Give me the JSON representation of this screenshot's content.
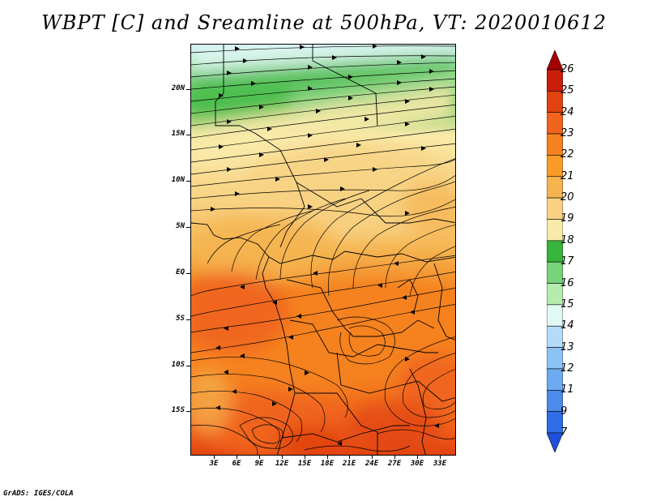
{
  "title": "WBPT [C] and Sreamline at 500hPa, VT: 2020010612",
  "credit": "GrADS: IGES/COLA",
  "lat_labels": [
    "20N",
    "15N",
    "10N",
    "5N",
    "EQ",
    "5S",
    "10S",
    "15S"
  ],
  "lon_labels": [
    "3E",
    "6E",
    "9E",
    "12E",
    "15E",
    "18E",
    "21E",
    "24E",
    "27E",
    "30E",
    "33E"
  ],
  "colorbar": {
    "labels": [
      "26",
      "25",
      "24",
      "23",
      "22",
      "21",
      "20",
      "19",
      "18",
      "17",
      "16",
      "15",
      "14",
      "13",
      "12",
      "11",
      "9",
      "7"
    ],
    "colors": [
      "#a50000",
      "#c81e0a",
      "#e1420f",
      "#f0641e",
      "#f5821e",
      "#fa9b28",
      "#f5b450",
      "#f8d282",
      "#faeaaa",
      "#37b43c",
      "#78d278",
      "#b4ebaf",
      "#e1f8f5",
      "#b4dcfa",
      "#8cc3f5",
      "#6eaaf0",
      "#4b8ceb",
      "#2f6ee6",
      "#1e50dc"
    ]
  }
}
